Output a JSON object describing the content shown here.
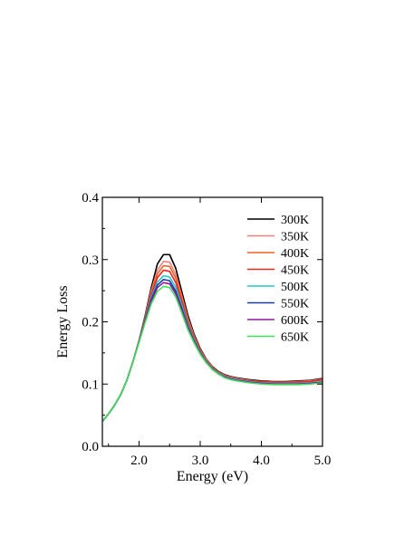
{
  "chart_data": {
    "type": "line",
    "xlabel": "Energy (eV)",
    "ylabel": "Energy Loss",
    "xlim": [
      1.4,
      5.0
    ],
    "ylim": [
      0.0,
      0.4
    ],
    "x_ticks": [
      2.0,
      3.0,
      4.0,
      5.0
    ],
    "x_tick_labels": [
      "2.0",
      "3.0",
      "4.0",
      "5.0"
    ],
    "y_ticks": [
      0.0,
      0.1,
      0.2,
      0.3,
      0.4
    ],
    "y_tick_labels": [
      "0.0",
      "0.1",
      "0.2",
      "0.3",
      "0.4"
    ],
    "legend_position": "top-right",
    "grid": false,
    "x": [
      1.4,
      1.5,
      1.6,
      1.7,
      1.8,
      1.9,
      2.0,
      2.1,
      2.2,
      2.3,
      2.4,
      2.5,
      2.6,
      2.7,
      2.8,
      2.9,
      3.0,
      3.1,
      3.2,
      3.3,
      3.4,
      3.5,
      3.6,
      3.8,
      4.0,
      4.2,
      4.4,
      4.6,
      4.8,
      5.0
    ],
    "series": [
      {
        "name": "300K",
        "color": "#000000",
        "values": [
          0.04,
          0.052,
          0.066,
          0.083,
          0.106,
          0.136,
          0.17,
          0.21,
          0.255,
          0.293,
          0.308,
          0.308,
          0.286,
          0.248,
          0.21,
          0.18,
          0.157,
          0.14,
          0.128,
          0.12,
          0.115,
          0.112,
          0.11,
          0.107,
          0.105,
          0.104,
          0.104,
          0.105,
          0.106,
          0.109
        ]
      },
      {
        "name": "350K",
        "color": "#f08080",
        "values": [
          0.04,
          0.052,
          0.066,
          0.083,
          0.106,
          0.136,
          0.169,
          0.207,
          0.25,
          0.283,
          0.297,
          0.296,
          0.276,
          0.241,
          0.205,
          0.177,
          0.155,
          0.139,
          0.127,
          0.119,
          0.114,
          0.111,
          0.109,
          0.106,
          0.104,
          0.103,
          0.103,
          0.104,
          0.105,
          0.108
        ]
      },
      {
        "name": "400K",
        "color": "#f06020",
        "values": [
          0.04,
          0.052,
          0.066,
          0.083,
          0.106,
          0.136,
          0.169,
          0.206,
          0.246,
          0.277,
          0.29,
          0.289,
          0.27,
          0.237,
          0.202,
          0.175,
          0.154,
          0.138,
          0.126,
          0.118,
          0.113,
          0.11,
          0.108,
          0.105,
          0.104,
          0.103,
          0.103,
          0.103,
          0.104,
          0.107
        ]
      },
      {
        "name": "450K",
        "color": "#e8281e",
        "values": [
          0.04,
          0.052,
          0.066,
          0.083,
          0.106,
          0.136,
          0.169,
          0.205,
          0.243,
          0.271,
          0.283,
          0.281,
          0.263,
          0.232,
          0.199,
          0.173,
          0.153,
          0.137,
          0.126,
          0.118,
          0.113,
          0.11,
          0.108,
          0.105,
          0.104,
          0.103,
          0.103,
          0.103,
          0.104,
          0.107
        ]
      },
      {
        "name": "500K",
        "color": "#20c8d0",
        "values": [
          0.04,
          0.052,
          0.066,
          0.083,
          0.106,
          0.136,
          0.168,
          0.203,
          0.239,
          0.264,
          0.274,
          0.272,
          0.255,
          0.226,
          0.195,
          0.171,
          0.151,
          0.136,
          0.125,
          0.117,
          0.112,
          0.109,
          0.107,
          0.104,
          0.102,
          0.101,
          0.101,
          0.101,
          0.102,
          0.104
        ]
      },
      {
        "name": "550K",
        "color": "#1a3aa8",
        "values": [
          0.04,
          0.052,
          0.066,
          0.083,
          0.106,
          0.136,
          0.168,
          0.202,
          0.236,
          0.259,
          0.268,
          0.266,
          0.249,
          0.221,
          0.192,
          0.169,
          0.15,
          0.135,
          0.124,
          0.116,
          0.111,
          0.108,
          0.106,
          0.103,
          0.101,
          0.1,
          0.1,
          0.1,
          0.101,
          0.103
        ]
      },
      {
        "name": "600K",
        "color": "#8b1a9b",
        "values": [
          0.04,
          0.052,
          0.066,
          0.083,
          0.106,
          0.136,
          0.168,
          0.201,
          0.233,
          0.255,
          0.263,
          0.261,
          0.245,
          0.218,
          0.19,
          0.168,
          0.149,
          0.135,
          0.124,
          0.116,
          0.111,
          0.108,
          0.106,
          0.103,
          0.101,
          0.1,
          0.1,
          0.1,
          0.101,
          0.103
        ]
      },
      {
        "name": "650K",
        "color": "#3ee05a",
        "values": [
          0.04,
          0.052,
          0.066,
          0.083,
          0.106,
          0.136,
          0.167,
          0.199,
          0.229,
          0.249,
          0.257,
          0.255,
          0.24,
          0.214,
          0.187,
          0.166,
          0.148,
          0.134,
          0.123,
          0.116,
          0.11,
          0.107,
          0.105,
          0.102,
          0.1,
          0.099,
          0.099,
          0.099,
          0.1,
          0.102
        ]
      }
    ]
  }
}
